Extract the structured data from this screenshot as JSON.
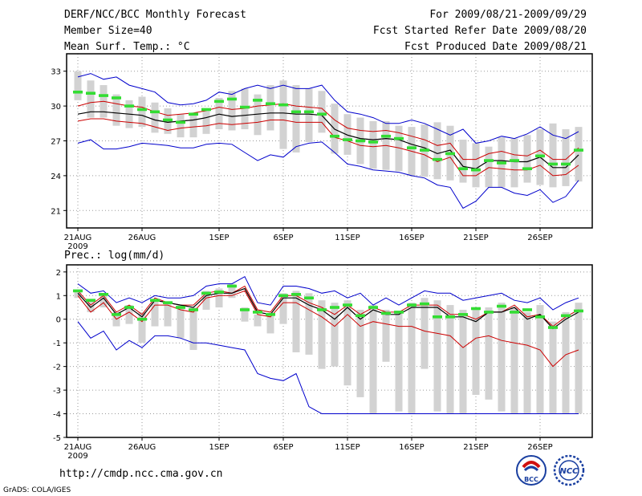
{
  "header": {
    "line1": "DERF/NCC/BCC Monthly Forecast",
    "line2": "Member Size=40",
    "line3": "Mean Surf. Temp.: °C",
    "line4": "For 2009/08/21-2009/09/29",
    "line5": "Fcst Started Refer Date 2009/08/20",
    "line6": "Fcst Produced Date 2009/08/21"
  },
  "footer": {
    "url": "http://cmdp.ncc.cma.gov.cn",
    "grads": "GrADS: COLA/IGES",
    "logo_left": "BCC",
    "logo_right": "NCC"
  },
  "colors": {
    "box": "#d2d2d2",
    "mean": "#000000",
    "band": "#cc0000",
    "envelope": "#0000cc",
    "obs": "#33dd33",
    "grid": "#999999"
  },
  "chart_data": [
    {
      "type": "box-plume",
      "title": "Mean Surf. Temp.",
      "ylabel": "°C",
      "ylim": [
        19.5,
        34.5
      ],
      "yticks": [
        "21",
        "24",
        "27",
        "30",
        "33"
      ],
      "ytick_values": [
        21,
        24,
        27,
        30,
        33
      ],
      "xticks": [
        "21AUG",
        "26AUG",
        "1SEP",
        "6SEP",
        "11SEP",
        "16SEP",
        "21SEP",
        "26SEP"
      ],
      "xtick_days": [
        1,
        6,
        12,
        17,
        22,
        27,
        32,
        37
      ],
      "year_label": "2009",
      "days": [
        1,
        2,
        3,
        4,
        5,
        6,
        7,
        8,
        9,
        10,
        11,
        12,
        13,
        14,
        15,
        16,
        17,
        18,
        19,
        20,
        21,
        22,
        23,
        24,
        25,
        26,
        27,
        28,
        29,
        30,
        31,
        32,
        33,
        34,
        35,
        36,
        37,
        38,
        39,
        40
      ],
      "series": [
        {
          "name": "max",
          "values": [
            32.5,
            32.8,
            32.3,
            32.5,
            31.8,
            31.5,
            31.2,
            30.3,
            30.1,
            30.2,
            30.5,
            31.2,
            31.0,
            31.5,
            31.8,
            31.5,
            31.8,
            31.5,
            31.5,
            31.8,
            30.5,
            29.5,
            29.3,
            29.0,
            28.5,
            28.5,
            28.8,
            28.5,
            28.0,
            27.5,
            28.0,
            26.8,
            27.0,
            27.4,
            27.2,
            27.6,
            28.2,
            27.5,
            27.2,
            27.8
          ]
        },
        {
          "name": "upper",
          "values": [
            30.0,
            30.3,
            30.4,
            30.2,
            30.0,
            29.9,
            29.5,
            29.2,
            29.3,
            29.4,
            29.6,
            29.9,
            29.7,
            29.8,
            30.0,
            30.1,
            30.2,
            30.0,
            29.9,
            29.8,
            28.8,
            28.1,
            27.9,
            27.8,
            27.9,
            27.7,
            27.4,
            27.1,
            26.6,
            26.8,
            25.4,
            25.4,
            25.9,
            26.1,
            25.8,
            25.7,
            26.2,
            25.4,
            25.4,
            26.4
          ]
        },
        {
          "name": "mean",
          "values": [
            29.3,
            29.5,
            29.5,
            29.4,
            29.3,
            29.2,
            28.8,
            28.6,
            28.7,
            28.8,
            29.0,
            29.3,
            29.1,
            29.2,
            29.3,
            29.4,
            29.4,
            29.3,
            29.3,
            29.2,
            28.0,
            27.5,
            27.2,
            27.1,
            27.2,
            27.1,
            26.7,
            26.4,
            25.9,
            26.2,
            24.8,
            24.6,
            25.3,
            25.3,
            25.2,
            25.2,
            25.6,
            24.7,
            24.7,
            25.8
          ]
        },
        {
          "name": "lower",
          "values": [
            28.7,
            28.9,
            28.9,
            28.7,
            28.6,
            28.5,
            28.2,
            27.9,
            28.1,
            28.2,
            28.3,
            28.5,
            28.4,
            28.5,
            28.6,
            28.8,
            28.8,
            28.6,
            28.6,
            28.6,
            27.3,
            27.0,
            26.6,
            26.5,
            26.6,
            26.4,
            26.1,
            25.8,
            25.2,
            25.6,
            24.0,
            24.0,
            24.7,
            24.6,
            24.5,
            24.5,
            24.9,
            24.0,
            24.1,
            24.9
          ]
        },
        {
          "name": "min",
          "values": [
            26.8,
            27.1,
            26.3,
            26.3,
            26.5,
            26.8,
            26.7,
            26.6,
            26.4,
            26.4,
            26.7,
            26.8,
            26.7,
            26.0,
            25.3,
            25.8,
            25.6,
            26.5,
            26.8,
            26.9,
            26.0,
            25.0,
            24.8,
            24.5,
            24.4,
            24.3,
            24.0,
            23.8,
            23.2,
            23.0,
            21.2,
            21.8,
            23.0,
            23.0,
            22.5,
            22.3,
            22.8,
            21.7,
            22.2,
            23.6
          ]
        },
        {
          "name": "obs",
          "values": [
            31.2,
            31.1,
            30.9,
            30.7,
            30.0,
            29.7,
            29.5,
            28.8,
            28.6,
            29.3,
            29.7,
            30.4,
            30.6,
            29.9,
            30.5,
            30.2,
            30.1,
            29.5,
            29.5,
            29.3,
            27.4,
            27.1,
            27.0,
            26.9,
            27.4,
            27.2,
            26.4,
            26.2,
            25.4,
            25.9,
            24.6,
            24.5,
            25.3,
            25.1,
            25.3,
            24.6,
            25.7,
            25.0,
            25.0,
            26.2
          ]
        },
        {
          "name": "box_top",
          "values": [
            33.0,
            32.2,
            31.8,
            31.0,
            30.5,
            30.8,
            30.3,
            29.8,
            29.3,
            29.4,
            29.6,
            30.7,
            31.3,
            31.5,
            31.0,
            31.8,
            32.2,
            31.8,
            31.5,
            31.3,
            30.2,
            29.3,
            29.0,
            28.7,
            28.7,
            28.3,
            28.2,
            28.4,
            28.6,
            28.3,
            27.1,
            26.8,
            26.5,
            27.3,
            27.2,
            27.5,
            28.0,
            28.5,
            28.0,
            28.2
          ]
        },
        {
          "name": "box_bottom",
          "values": [
            30.5,
            29.0,
            29.0,
            28.3,
            28.1,
            28.2,
            27.7,
            27.6,
            27.3,
            27.3,
            27.6,
            28.0,
            27.9,
            28.0,
            27.5,
            27.9,
            26.3,
            26.0,
            26.9,
            27.7,
            25.9,
            25.8,
            25.0,
            24.6,
            24.5,
            24.4,
            24.0,
            23.9,
            23.7,
            23.6,
            23.4,
            23.0,
            23.0,
            23.0,
            23.0,
            23.4,
            23.2,
            23.0,
            23.1,
            23.5
          ]
        }
      ]
    },
    {
      "type": "box-plume",
      "title": "Prec.: log(mm/d)",
      "ylabel": "Prec.: log(mm/d)",
      "ylim": [
        -5,
        2.3
      ],
      "yticks": [
        "-5",
        "-4",
        "-3",
        "-2",
        "-1",
        "0",
        "1",
        "2"
      ],
      "ytick_values": [
        -5,
        -4,
        -3,
        -2,
        -1,
        0,
        1,
        2
      ],
      "xticks": [
        "21AUG",
        "26AUG",
        "1SEP",
        "6SEP",
        "11SEP",
        "16SEP",
        "21SEP",
        "26SEP"
      ],
      "xtick_days": [
        1,
        6,
        12,
        17,
        22,
        27,
        32,
        37
      ],
      "year_label": "2009",
      "days": [
        1,
        2,
        3,
        4,
        5,
        6,
        7,
        8,
        9,
        10,
        11,
        12,
        13,
        14,
        15,
        16,
        17,
        18,
        19,
        20,
        21,
        22,
        23,
        24,
        25,
        26,
        27,
        28,
        29,
        30,
        31,
        32,
        33,
        34,
        35,
        36,
        37,
        38,
        39,
        40
      ],
      "series": [
        {
          "name": "max",
          "values": [
            1.5,
            1.1,
            1.2,
            0.7,
            0.9,
            0.7,
            1.0,
            0.9,
            0.9,
            1.0,
            1.4,
            1.5,
            1.5,
            1.8,
            0.7,
            0.6,
            1.4,
            1.4,
            1.3,
            1.1,
            1.2,
            0.9,
            1.1,
            0.6,
            0.9,
            0.6,
            0.9,
            1.2,
            1.1,
            1.1,
            0.8,
            0.9,
            1.0,
            1.1,
            0.8,
            0.7,
            0.9,
            0.4,
            0.7,
            0.9
          ]
        },
        {
          "name": "upper",
          "values": [
            1.2,
            0.6,
            1.0,
            0.3,
            0.6,
            0.2,
            0.9,
            0.7,
            0.6,
            0.6,
            1.1,
            1.2,
            1.1,
            1.4,
            0.4,
            0.3,
            1.0,
            1.0,
            0.7,
            0.5,
            0.2,
            0.6,
            0.2,
            0.5,
            0.3,
            0.3,
            0.6,
            0.6,
            0.6,
            0.2,
            0.2,
            0.0,
            0.3,
            0.3,
            0.6,
            0.1,
            0.2,
            -0.3,
            0.1,
            0.4
          ]
        },
        {
          "name": "mean",
          "values": [
            1.1,
            0.5,
            0.9,
            0.2,
            0.5,
            0.1,
            0.8,
            0.7,
            0.6,
            0.5,
            1.0,
            1.1,
            1.1,
            1.3,
            0.3,
            0.2,
            0.9,
            0.9,
            0.6,
            0.4,
            0.0,
            0.5,
            0.0,
            0.4,
            0.2,
            0.2,
            0.5,
            0.5,
            0.5,
            0.1,
            0.1,
            -0.1,
            0.3,
            0.3,
            0.5,
            0.0,
            0.2,
            -0.4,
            0.0,
            0.3
          ]
        },
        {
          "name": "lower",
          "values": [
            1.0,
            0.3,
            0.7,
            0.0,
            0.3,
            -0.1,
            0.6,
            0.6,
            0.4,
            0.3,
            0.9,
            1.0,
            1.0,
            1.2,
            0.2,
            0.1,
            0.7,
            0.7,
            0.4,
            0.1,
            -0.3,
            0.2,
            -0.3,
            -0.1,
            -0.2,
            -0.3,
            -0.3,
            -0.5,
            -0.6,
            -0.7,
            -1.2,
            -0.8,
            -0.7,
            -0.9,
            -1.0,
            -1.1,
            -1.3,
            -2.0,
            -1.5,
            -1.3
          ]
        },
        {
          "name": "min",
          "values": [
            -0.1,
            -0.8,
            -0.5,
            -1.3,
            -0.9,
            -1.2,
            -0.7,
            -0.7,
            -0.8,
            -1.0,
            -1.0,
            -1.1,
            -1.2,
            -1.3,
            -2.3,
            -2.5,
            -2.6,
            -2.3,
            -3.7,
            -4.0,
            -4.0,
            -4.0,
            -4.0,
            -4.0,
            -4.0,
            -4.0,
            -4.0,
            -4.0,
            -4.0,
            -4.0,
            -4.0,
            -4.0,
            -4.0,
            -4.0,
            -4.0,
            -4.0,
            -4.0,
            -4.0,
            -4.0,
            -4.0
          ]
        },
        {
          "name": "obs",
          "values": [
            1.2,
            0.8,
            1.05,
            0.2,
            0.5,
            0.0,
            0.8,
            0.7,
            0.5,
            0.4,
            1.1,
            1.15,
            1.4,
            0.4,
            0.3,
            0.2,
            1.0,
            1.05,
            0.9,
            0.4,
            0.5,
            0.6,
            0.15,
            0.5,
            0.25,
            0.3,
            0.6,
            0.65,
            0.1,
            0.1,
            0.2,
            0.45,
            0.3,
            0.55,
            0.3,
            0.4,
            0.1,
            -0.35,
            0.15,
            0.35
          ]
        },
        {
          "name": "box_top",
          "values": [
            1.2,
            0.8,
            1.1,
            0.3,
            0.6,
            0.3,
            0.8,
            0.7,
            0.6,
            0.5,
            1.2,
            1.3,
            1.5,
            0.5,
            0.2,
            0.2,
            1.1,
            1.2,
            1.1,
            0.8,
            0.7,
            0.8,
            0.4,
            0.6,
            0.4,
            0.3,
            0.7,
            0.9,
            0.8,
            0.6,
            0.4,
            0.4,
            0.5,
            0.7,
            0.5,
            0.3,
            0.6,
            -0.1,
            0.3,
            0.7
          ]
        },
        {
          "name": "box_bottom",
          "values": [
            0.9,
            0.3,
            0.5,
            -0.3,
            -0.2,
            -1.0,
            -0.3,
            -0.3,
            -0.8,
            -1.3,
            0.4,
            0.5,
            0.9,
            -0.1,
            -0.3,
            -0.6,
            -0.2,
            -1.4,
            -1.5,
            -2.1,
            -2.0,
            -2.8,
            -3.3,
            -4.0,
            -1.8,
            -3.9,
            -4.0,
            -2.1,
            -3.9,
            -4.0,
            -4.0,
            -3.2,
            -3.4,
            -3.9,
            -4.0,
            -4.0,
            -4.0,
            -4.0,
            -4.0,
            -4.0
          ]
        }
      ]
    }
  ]
}
